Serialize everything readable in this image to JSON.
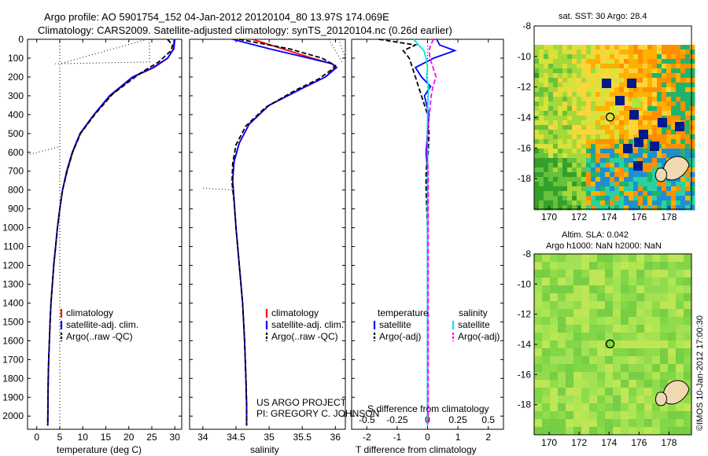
{
  "header": {
    "line1": "Argo profile: AO 5901754_152 04-Jan-2012 20120104_80 13.97S 174.069E",
    "line2": "Climatology: CARS2009. Satellite-adjusted climatology: synTS_20120104.nc (0.26d earlier)"
  },
  "colors": {
    "climatology": "#ff0000",
    "satellite": "#0000ff",
    "argo": "#000000",
    "sal_satellite": "#00e5ee",
    "sal_argo": "#ff00ff"
  },
  "depth_axis": {
    "ticks": [
      0,
      100,
      200,
      300,
      400,
      500,
      600,
      700,
      800,
      900,
      1000,
      1100,
      1200,
      1300,
      1400,
      1500,
      1600,
      1700,
      1800,
      1900,
      2000
    ],
    "max": 2070
  },
  "panels": {
    "temperature": {
      "xlabel": "temperature (deg C)",
      "xlim": [
        -2,
        31.5
      ],
      "xticks": [
        0,
        5,
        10,
        15,
        20,
        25,
        30
      ],
      "legend": [
        "climatology",
        "satellite-adj. clim.",
        "Argo(..raw -QC)"
      ]
    },
    "salinity": {
      "xlabel": "salinity",
      "xlim": [
        33.8,
        36.15
      ],
      "xticks": [
        34,
        34.5,
        35,
        35.5,
        36
      ],
      "legend": [
        "climatology",
        "satellite-adj. clim.",
        "Argo(..raw -QC)"
      ],
      "credit1": "US ARGO PROJECT",
      "credit2": "PI: GREGORY C. JOHNSON"
    },
    "difference": {
      "xlabel": "T difference from climatology",
      "xlabel_top": "S difference from climatology",
      "xlim": [
        -2.5,
        2.5
      ],
      "t_ticks": [
        -2,
        -1,
        0,
        1,
        2
      ],
      "s_ticks": [
        "-0.5",
        "-0.25",
        "0",
        "0.25",
        "0.5"
      ],
      "legend_temp_title": "temperature",
      "legend_sal_title": "salinity",
      "legend_temp_items": [
        "satellite",
        "Argo(-adj)"
      ],
      "legend_sal_items": [
        "satellite",
        "Argo(-adj)"
      ]
    }
  },
  "maps": {
    "sst": {
      "title": "sat. SST: 30 Argo: 28.4",
      "lat_ticks": [
        -8,
        -10,
        -12,
        -14,
        -16,
        -18
      ],
      "lon_ticks": [
        170,
        172,
        174,
        176,
        178
      ]
    },
    "sla": {
      "title1": "Altim. SLA: 0.042",
      "title2": "Argo h1000: NaN h2000: NaN",
      "lat_ticks": [
        -8,
        -10,
        -12,
        -14,
        -16,
        -18
      ],
      "lon_ticks": [
        170,
        172,
        174,
        176,
        178
      ]
    }
  },
  "footer": "©IMOS 10-Jan-2012 17:00:30",
  "chart_data": [
    {
      "type": "line",
      "xlabel": "temperature (deg C)",
      "ylabel": "",
      "series": [
        {
          "name": "climatology",
          "x": [
            29.8,
            29.7,
            28.5,
            25.5,
            21,
            16,
            12.5,
            9.5,
            7.8,
            6.6,
            5.6,
            5.0,
            4.5,
            4.1,
            3.7,
            3.4,
            3.1,
            2.9,
            2.75,
            2.6,
            2.5,
            2.4
          ],
          "y": [
            0,
            50,
            100,
            150,
            200,
            300,
            400,
            500,
            600,
            700,
            800,
            900,
            1000,
            1100,
            1200,
            1300,
            1400,
            1500,
            1600,
            1700,
            1800,
            2050
          ]
        },
        {
          "name": "satellite-adj. clim.",
          "x": [
            30,
            29.8,
            28.4,
            25.3,
            20.8,
            15.8,
            12.4,
            9.4,
            7.7,
            6.5,
            5.6,
            5.0,
            4.5,
            4.1,
            3.7,
            3.4,
            3.1,
            2.9,
            2.75,
            2.6,
            2.5,
            2.4
          ],
          "y": [
            0,
            50,
            100,
            150,
            200,
            300,
            400,
            500,
            600,
            700,
            800,
            900,
            1000,
            1100,
            1200,
            1300,
            1400,
            1500,
            1600,
            1700,
            1800,
            2050
          ]
        },
        {
          "name": "Argo(..raw -QC)",
          "x": [
            28.4,
            29.5,
            29.2,
            26.5,
            22.5,
            16.5,
            12.6,
            9.5,
            7.8,
            6.6,
            5.6,
            5.0,
            4.5,
            4.1,
            3.7,
            3.4,
            3.1,
            2.9,
            2.75,
            2.6,
            2.5,
            2.4
          ],
          "y": [
            0,
            30,
            60,
            120,
            180,
            290,
            400,
            500,
            600,
            700,
            800,
            900,
            1000,
            1100,
            1200,
            1300,
            1400,
            1500,
            1600,
            1700,
            1800,
            2050
          ]
        }
      ]
    },
    {
      "type": "line",
      "xlabel": "salinity",
      "ylabel": "",
      "series": [
        {
          "name": "climatology",
          "x": [
            34.75,
            35.2,
            35.65,
            35.95,
            36.0,
            35.85,
            35.5,
            35.0,
            34.7,
            34.55,
            34.47,
            34.45,
            34.47,
            34.5,
            34.55,
            34.6,
            34.63,
            34.65,
            34.66,
            34.66
          ],
          "y": [
            0,
            50,
            100,
            130,
            150,
            200,
            260,
            350,
            450,
            550,
            650,
            750,
            850,
            1000,
            1200,
            1400,
            1600,
            1800,
            1950,
            2050
          ]
        },
        {
          "name": "satellite-adj. clim.",
          "x": [
            34.45,
            35.0,
            35.6,
            35.95,
            36.02,
            35.85,
            35.5,
            35.0,
            34.7,
            34.55,
            34.47,
            34.45,
            34.47,
            34.5,
            34.55,
            34.6,
            34.63,
            34.65,
            34.66,
            34.66
          ],
          "y": [
            0,
            50,
            100,
            130,
            150,
            200,
            260,
            350,
            450,
            550,
            650,
            750,
            850,
            1000,
            1200,
            1400,
            1600,
            1800,
            1950,
            2050
          ]
        },
        {
          "name": "Argo(..raw -QC)",
          "x": [
            34.55,
            35.3,
            35.8,
            36.0,
            35.95,
            35.75,
            35.4,
            34.95,
            34.65,
            34.5,
            34.45,
            34.44,
            34.47,
            34.5,
            34.55,
            34.6,
            34.63,
            34.65,
            34.66,
            34.66
          ],
          "y": [
            0,
            50,
            100,
            140,
            160,
            210,
            270,
            360,
            460,
            560,
            660,
            760,
            860,
            1000,
            1200,
            1400,
            1600,
            1800,
            1950,
            2050
          ]
        }
      ]
    },
    {
      "type": "line",
      "xlabel": "T difference from climatology",
      "ylabel": "",
      "series": [
        {
          "name": "temperature satellite",
          "x": [
            0.3,
            0.4,
            0.9,
            0.2,
            -0.4,
            -0.2,
            0.1,
            -0.1,
            0.05,
            0,
            -0.05,
            0,
            0,
            0,
            0,
            0,
            0,
            0,
            0
          ],
          "y": [
            0,
            30,
            60,
            100,
            150,
            200,
            250,
            300,
            400,
            500,
            600,
            700,
            800,
            1000,
            1200,
            1400,
            1600,
            1800,
            2050
          ]
        },
        {
          "name": "temperature Argo(-adj)",
          "x": [
            -1.6,
            -0.4,
            -0.8,
            -0.6,
            -0.5,
            -0.4,
            -0.3,
            -0.2,
            0,
            0.05,
            0.02,
            -0.05,
            -0.05,
            0,
            0,
            0,
            0,
            0,
            0
          ],
          "y": [
            0,
            30,
            60,
            100,
            150,
            200,
            250,
            300,
            400,
            500,
            600,
            700,
            800,
            1000,
            1200,
            1400,
            1600,
            1800,
            2050
          ]
        },
        {
          "name": "salinity satellite",
          "x": [
            -0.45,
            -0.3,
            -0.12,
            -0.05,
            0,
            -0.03,
            0.03,
            0.02,
            0,
            -0.01,
            0,
            0,
            0,
            0,
            0,
            0,
            0,
            0,
            0
          ],
          "y": [
            0,
            30,
            60,
            100,
            150,
            200,
            250,
            300,
            400,
            500,
            600,
            700,
            800,
            1000,
            1200,
            1400,
            1600,
            1800,
            2050
          ]
        },
        {
          "name": "salinity Argo(-adj)",
          "x": [
            0.2,
            0.1,
            0.05,
            0.08,
            0.18,
            0.28,
            0.18,
            0.12,
            0.06,
            0,
            -0.02,
            0.02,
            0.02,
            0.02,
            0.02,
            0.02,
            0.02,
            0.02,
            0.02
          ],
          "y": [
            0,
            30,
            60,
            100,
            150,
            200,
            250,
            300,
            400,
            500,
            600,
            700,
            800,
            1000,
            1200,
            1400,
            1600,
            1800,
            2050
          ]
        }
      ]
    }
  ]
}
